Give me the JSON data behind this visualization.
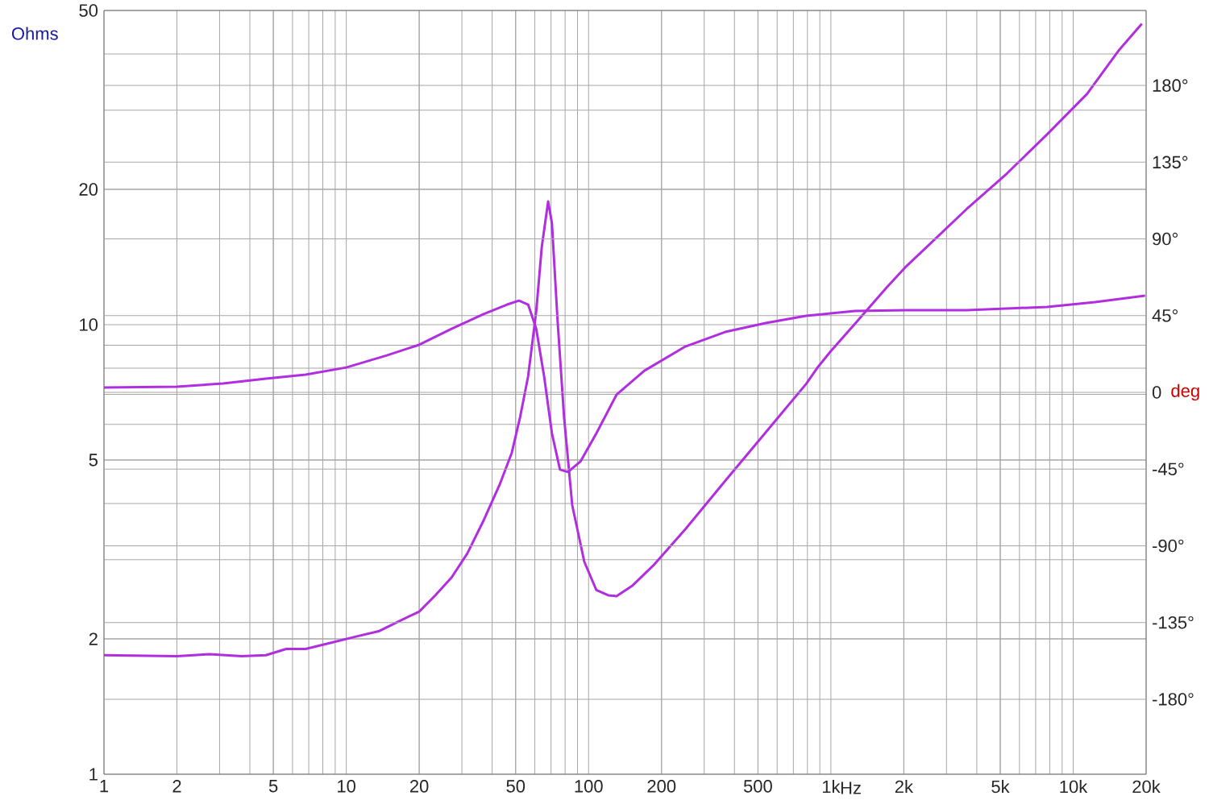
{
  "chart_data": {
    "type": "line",
    "ylabel": "Ohms",
    "xlabel": "Hz",
    "y2label": "deg",
    "log": "xy",
    "grid": true,
    "xlim": [
      1,
      20000
    ],
    "ylim": [
      1,
      50
    ],
    "y2lim": [
      -224,
      224
    ],
    "xticks": [
      1,
      2,
      5,
      10,
      20,
      50,
      100,
      200,
      500,
      {
        "value": 1000,
        "label": "1k"
      },
      {
        "value": 2000,
        "label": "2k"
      },
      {
        "value": 5000,
        "label": "5k"
      },
      {
        "value": 10000,
        "label": "10k"
      },
      {
        "value": 20000,
        "label": "20k"
      }
    ],
    "yticks": [
      1,
      2,
      5,
      10,
      20,
      50
    ],
    "y2ticks": [
      {
        "value": -180,
        "label": "-180°"
      },
      {
        "value": -135,
        "label": "-135°"
      },
      {
        "value": -90,
        "label": "-90°"
      },
      {
        "value": -45,
        "label": "-45°"
      },
      0,
      {
        "value": 45,
        "label": "45°"
      },
      {
        "value": 90,
        "label": "90°"
      },
      {
        "value": 135,
        "label": "135°"
      },
      {
        "value": 180,
        "label": "180°"
      }
    ],
    "series": [
      {
        "color": "#b02ee0",
        "x": [
          1,
          2,
          2.73,
          3.7,
          4.66,
          5.65,
          6.8,
          8.6,
          10.8,
          13.6,
          17.1,
          20,
          23.3,
          27.2,
          31.6,
          36.7,
          42.9,
          48.2,
          52.2,
          56.3,
          60.8,
          64.1,
          68.1,
          70.6,
          74.5,
          79.2,
          85.6,
          96,
          107.6,
          120.6,
          130.4,
          152,
          184.6,
          251,
          366,
          538,
          790,
          887,
          995,
          1256,
          1700,
          2050,
          2490,
          3640,
          5330,
          7800,
          11400,
          15500,
          19200
        ],
        "values": [
          1.84,
          1.83,
          1.85,
          1.83,
          1.84,
          1.9,
          1.9,
          1.96,
          2.02,
          2.08,
          2.21,
          2.3,
          2.5,
          2.74,
          3.1,
          3.65,
          4.4,
          5.19,
          6.24,
          7.68,
          10.7,
          14.9,
          18.8,
          16.8,
          10.2,
          6.24,
          3.97,
          2.97,
          2.57,
          2.5,
          2.49,
          2.63,
          2.91,
          3.51,
          4.49,
          5.76,
          7.38,
          8.07,
          8.71,
          10.04,
          12.1,
          13.5,
          14.9,
          18.1,
          21.7,
          26.5,
          32.6,
          40.9,
          46.7
        ]
      },
      {
        "color": "#b02ee0",
        "axis": "y2",
        "x": [
          1,
          2,
          3.1,
          4.66,
          6.8,
          10,
          14.7,
          20,
          27.2,
          36.7,
          46.1,
          51.6,
          56.3,
          60.8,
          65.6,
          70.6,
          76.2,
          82.2,
          92.5,
          107.6,
          130.4,
          170,
          251,
          366,
          538,
          790,
          995,
          1256,
          2050,
          3640,
          7800,
          12300,
          19800
        ],
        "values": [
          2.8,
          3.3,
          5.2,
          8.0,
          10.4,
          14.6,
          21.7,
          27.9,
          37.3,
          45.8,
          51.5,
          53.8,
          51.5,
          37.3,
          9.0,
          -24.1,
          -45.3,
          -46.7,
          -40.6,
          -24.1,
          -1.4,
          12.7,
          26.9,
          35.4,
          40.6,
          44.9,
          46.3,
          47.7,
          48.2,
          48.2,
          50.1,
          52.9,
          56.7
        ]
      }
    ]
  }
}
